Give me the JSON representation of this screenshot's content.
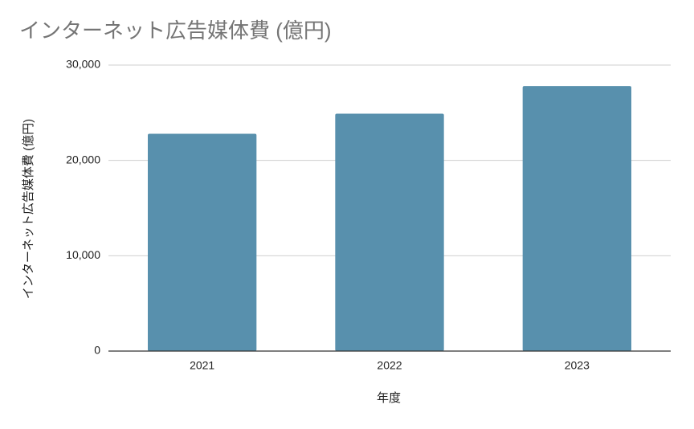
{
  "chart_data": {
    "type": "bar",
    "title": "インターネット広告媒体費 (億円)",
    "x_label": "年度",
    "y_label": "インターネット広告媒体費 (億円)",
    "categories": [
      "2021",
      "2022",
      "2023"
    ],
    "values": [
      22800,
      24900,
      27800
    ],
    "color": "#5890ad",
    "ylim": [
      0,
      30000
    ],
    "yticks": [
      0,
      {
        "value": 10000,
        "label": "10,000"
      },
      {
        "value": 20000,
        "label": "20,000"
      },
      {
        "value": 30000,
        "label": "30,000"
      }
    ],
    "grid": true
  }
}
